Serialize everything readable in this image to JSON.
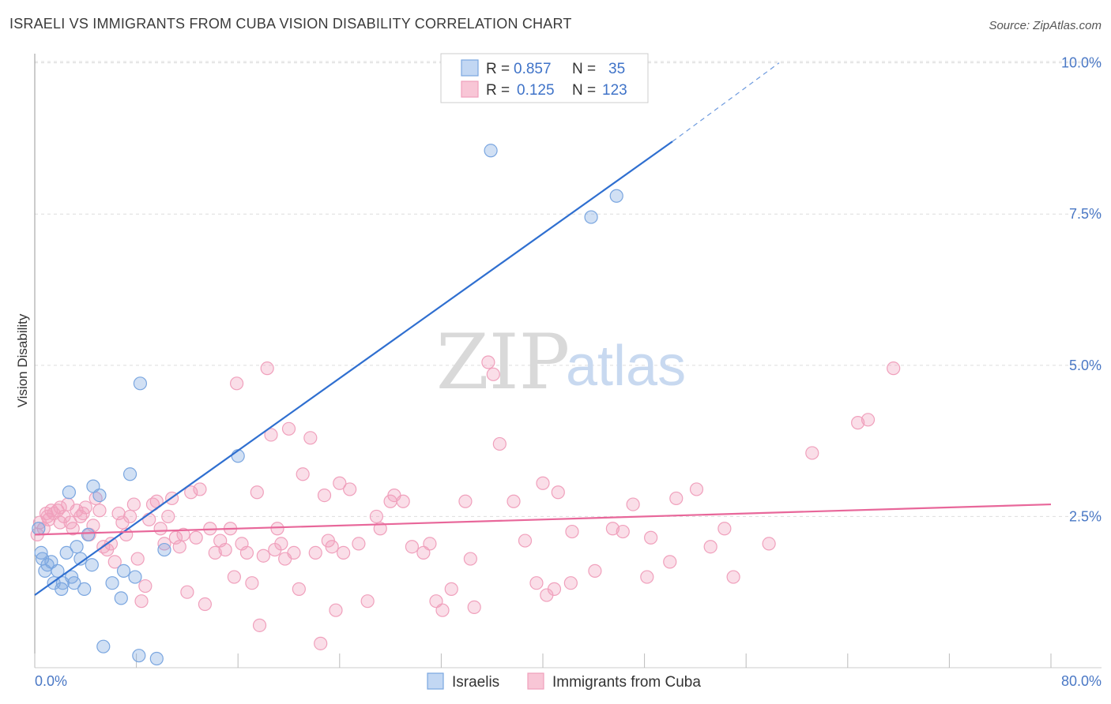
{
  "header": {
    "title": "ISRAELI VS IMMIGRANTS FROM CUBA VISION DISABILITY CORRELATION CHART",
    "source": "Source: ZipAtlas.com"
  },
  "watermark": {
    "zip": "ZIP",
    "atlas": "atlas"
  },
  "colors": {
    "israelis": "#7aa6e0",
    "israelis_line": "#2f6fd0",
    "cuba": "#f0a0bc",
    "cuba_line": "#e8679a",
    "grid": "#dddddd",
    "tick_text": "#4a78c5"
  },
  "legend": {
    "rows": [
      {
        "r_label": "R =",
        "r_value": "0.857",
        "n_label": "N =",
        "n_value": "35"
      },
      {
        "r_label": "R =",
        "r_value": "0.125",
        "n_label": "N =",
        "n_value": "123"
      }
    ]
  },
  "bottom_legend": {
    "items": [
      "Israelis",
      "Immigrants from Cuba"
    ]
  },
  "chart_data": {
    "type": "scatter",
    "title": "ISRAELI VS IMMIGRANTS FROM CUBA VISION DISABILITY CORRELATION CHART",
    "xlabel": "",
    "ylabel": "Vision Disability",
    "xlim": [
      0,
      80
    ],
    "ylim": [
      0,
      10.4
    ],
    "x_tick_labels": [
      "0.0%",
      "80.0%"
    ],
    "y_ticks": [
      2.5,
      5.0,
      7.5,
      10.0
    ],
    "y_tick_labels": [
      "2.5%",
      "5.0%",
      "7.5%",
      "10.0%"
    ],
    "grid": true,
    "legend_position": "top-center",
    "series": [
      {
        "name": "Israelis",
        "R": 0.857,
        "N": 35,
        "trend": {
          "x0": 0,
          "y0": 1.2,
          "x1": 50.2,
          "y1": 8.7,
          "dashed_to_x": 58.6,
          "dashed_to_y": 10.0
        },
        "points": [
          [
            0.3,
            2.3
          ],
          [
            0.5,
            1.9
          ],
          [
            0.6,
            1.8
          ],
          [
            0.8,
            1.6
          ],
          [
            1.0,
            1.7
          ],
          [
            1.3,
            1.75
          ],
          [
            1.5,
            1.4
          ],
          [
            1.8,
            1.6
          ],
          [
            2.1,
            1.3
          ],
          [
            2.2,
            1.4
          ],
          [
            2.5,
            1.9
          ],
          [
            2.7,
            2.9
          ],
          [
            2.9,
            1.5
          ],
          [
            3.1,
            1.4
          ],
          [
            3.3,
            2.0
          ],
          [
            3.6,
            1.8
          ],
          [
            3.9,
            1.3
          ],
          [
            4.2,
            2.2
          ],
          [
            4.5,
            1.7
          ],
          [
            4.6,
            3.0
          ],
          [
            5.1,
            2.85
          ],
          [
            5.4,
            0.35
          ],
          [
            6.1,
            1.4
          ],
          [
            6.8,
            1.15
          ],
          [
            7.0,
            1.6
          ],
          [
            7.5,
            3.2
          ],
          [
            7.9,
            1.5
          ],
          [
            8.2,
            0.2
          ],
          [
            8.3,
            4.7
          ],
          [
            9.6,
            0.15
          ],
          [
            10.2,
            1.95
          ],
          [
            16.0,
            3.5
          ],
          [
            35.9,
            8.55
          ],
          [
            43.8,
            7.45
          ],
          [
            45.8,
            7.8
          ]
        ]
      },
      {
        "name": "Immigrants from Cuba",
        "R": 0.125,
        "N": 123,
        "trend": {
          "x0": 0,
          "y0": 2.2,
          "x1": 80,
          "y1": 2.7
        },
        "points": [
          [
            0.2,
            2.2
          ],
          [
            0.4,
            2.4
          ],
          [
            0.7,
            2.3
          ],
          [
            0.9,
            2.55
          ],
          [
            1.1,
            2.45
          ],
          [
            1.3,
            2.6
          ],
          [
            1.5,
            2.55
          ],
          [
            1.8,
            2.6
          ],
          [
            2.0,
            2.4
          ],
          [
            2.3,
            2.5
          ],
          [
            2.6,
            2.7
          ],
          [
            2.8,
            2.4
          ],
          [
            3.0,
            2.3
          ],
          [
            3.3,
            2.6
          ],
          [
            3.6,
            2.5
          ],
          [
            3.8,
            2.55
          ],
          [
            4.0,
            2.65
          ],
          [
            4.3,
            2.2
          ],
          [
            4.6,
            2.35
          ],
          [
            4.8,
            2.8
          ],
          [
            5.1,
            2.6
          ],
          [
            5.4,
            2.0
          ],
          [
            5.7,
            1.95
          ],
          [
            6.0,
            2.05
          ],
          [
            6.3,
            1.75
          ],
          [
            6.6,
            2.55
          ],
          [
            6.9,
            2.4
          ],
          [
            7.2,
            2.2
          ],
          [
            7.5,
            2.5
          ],
          [
            7.8,
            2.7
          ],
          [
            8.1,
            1.8
          ],
          [
            8.4,
            1.1
          ],
          [
            8.7,
            1.35
          ],
          [
            9.0,
            2.45
          ],
          [
            9.3,
            2.7
          ],
          [
            9.6,
            2.75
          ],
          [
            9.9,
            2.3
          ],
          [
            10.2,
            2.05
          ],
          [
            10.5,
            2.5
          ],
          [
            10.8,
            2.8
          ],
          [
            11.1,
            2.15
          ],
          [
            11.4,
            2.0
          ],
          [
            11.7,
            2.2
          ],
          [
            12.0,
            1.25
          ],
          [
            12.3,
            2.9
          ],
          [
            12.7,
            2.15
          ],
          [
            13.0,
            2.95
          ],
          [
            13.4,
            1.05
          ],
          [
            13.8,
            2.3
          ],
          [
            14.2,
            1.9
          ],
          [
            14.6,
            2.1
          ],
          [
            15.0,
            1.95
          ],
          [
            15.4,
            2.3
          ],
          [
            15.7,
            1.5
          ],
          [
            15.9,
            4.7
          ],
          [
            16.3,
            2.05
          ],
          [
            16.7,
            1.9
          ],
          [
            17.1,
            1.4
          ],
          [
            17.5,
            2.9
          ],
          [
            17.7,
            0.7
          ],
          [
            18.0,
            1.85
          ],
          [
            18.3,
            4.95
          ],
          [
            18.6,
            3.85
          ],
          [
            18.9,
            1.95
          ],
          [
            19.1,
            2.3
          ],
          [
            19.4,
            2.05
          ],
          [
            19.7,
            1.8
          ],
          [
            20.0,
            3.95
          ],
          [
            20.4,
            1.9
          ],
          [
            20.8,
            1.3
          ],
          [
            21.1,
            3.2
          ],
          [
            21.7,
            3.8
          ],
          [
            22.1,
            1.9
          ],
          [
            22.5,
            0.4
          ],
          [
            22.8,
            2.85
          ],
          [
            23.1,
            2.1
          ],
          [
            23.4,
            2.0
          ],
          [
            23.7,
            0.95
          ],
          [
            24.0,
            3.05
          ],
          [
            24.3,
            1.9
          ],
          [
            24.8,
            2.95
          ],
          [
            25.5,
            2.05
          ],
          [
            26.2,
            1.1
          ],
          [
            26.9,
            2.5
          ],
          [
            27.2,
            2.3
          ],
          [
            28.0,
            2.75
          ],
          [
            28.3,
            2.85
          ],
          [
            29.0,
            2.75
          ],
          [
            29.7,
            2.0
          ],
          [
            30.6,
            1.9
          ],
          [
            31.1,
            2.05
          ],
          [
            31.6,
            1.1
          ],
          [
            32.1,
            0.95
          ],
          [
            32.8,
            1.3
          ],
          [
            33.9,
            2.75
          ],
          [
            34.3,
            1.8
          ],
          [
            34.6,
            1.0
          ],
          [
            35.7,
            5.05
          ],
          [
            36.1,
            4.85
          ],
          [
            36.6,
            3.7
          ],
          [
            37.7,
            2.75
          ],
          [
            38.6,
            2.1
          ],
          [
            39.5,
            1.4
          ],
          [
            40.0,
            3.05
          ],
          [
            40.3,
            1.2
          ],
          [
            40.9,
            1.3
          ],
          [
            41.2,
            2.9
          ],
          [
            42.2,
            1.4
          ],
          [
            42.3,
            2.25
          ],
          [
            44.1,
            1.6
          ],
          [
            45.5,
            2.3
          ],
          [
            46.3,
            2.25
          ],
          [
            47.1,
            2.7
          ],
          [
            48.2,
            1.5
          ],
          [
            48.5,
            2.15
          ],
          [
            50.0,
            1.75
          ],
          [
            50.5,
            2.8
          ],
          [
            52.1,
            2.95
          ],
          [
            53.2,
            2.0
          ],
          [
            54.3,
            2.3
          ],
          [
            55.0,
            1.5
          ],
          [
            57.8,
            2.05
          ],
          [
            61.2,
            3.55
          ],
          [
            64.8,
            4.05
          ],
          [
            65.6,
            4.1
          ],
          [
            67.6,
            4.95
          ],
          [
            1.0,
            2.5
          ],
          [
            2.0,
            2.65
          ]
        ]
      }
    ]
  }
}
